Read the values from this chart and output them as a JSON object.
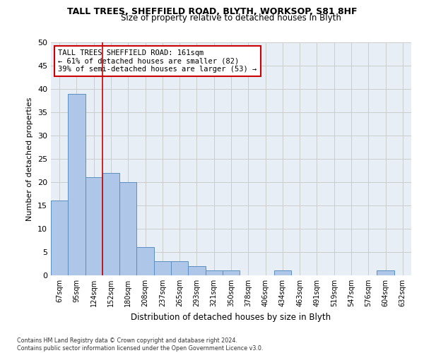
{
  "title": "TALL TREES, SHEFFIELD ROAD, BLYTH, WORKSOP, S81 8HF",
  "subtitle": "Size of property relative to detached houses in Blyth",
  "xlabel": "Distribution of detached houses by size in Blyth",
  "ylabel": "Number of detached properties",
  "categories": [
    "67sqm",
    "95sqm",
    "124sqm",
    "152sqm",
    "180sqm",
    "208sqm",
    "237sqm",
    "265sqm",
    "293sqm",
    "321sqm",
    "350sqm",
    "378sqm",
    "406sqm",
    "434sqm",
    "463sqm",
    "491sqm",
    "519sqm",
    "547sqm",
    "576sqm",
    "604sqm",
    "632sqm"
  ],
  "values": [
    16,
    39,
    21,
    22,
    20,
    6,
    3,
    3,
    2,
    1,
    1,
    0,
    0,
    1,
    0,
    0,
    0,
    0,
    0,
    1,
    0
  ],
  "bar_color": "#aec6e8",
  "bar_edge_color": "#5a8fc2",
  "grid_color": "#cccccc",
  "annotation_box_color": "#cc0000",
  "annotation_text": "TALL TREES SHEFFIELD ROAD: 161sqm\n← 61% of detached houses are smaller (82)\n39% of semi-detached houses are larger (53) →",
  "vline_color": "#cc0000",
  "ylim": [
    0,
    50
  ],
  "yticks": [
    0,
    5,
    10,
    15,
    20,
    25,
    30,
    35,
    40,
    45,
    50
  ],
  "footer": "Contains HM Land Registry data © Crown copyright and database right 2024.\nContains public sector information licensed under the Open Government Licence v3.0.",
  "background_color": "#e8eef5"
}
